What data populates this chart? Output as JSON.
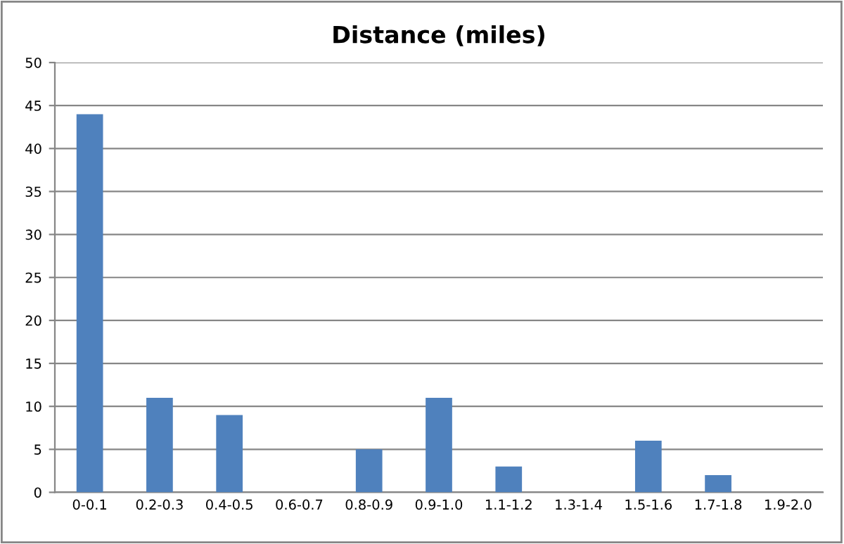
{
  "chart_data": {
    "type": "bar",
    "title": "Distance (miles)",
    "categories": [
      "0-0.1",
      "0.2-0.3",
      "0.4-0.5",
      "0.6-0.7",
      "0.8-0.9",
      "0.9-1.0",
      "1.1-1.2",
      "1.3-1.4",
      "1.5-1.6",
      "1.7-1.8",
      "1.9-2.0"
    ],
    "values": [
      44,
      11,
      9,
      0,
      5,
      11,
      3,
      0,
      6,
      2,
      0
    ],
    "color": "#4f81bd",
    "ylim": [
      0,
      50
    ],
    "yticks": [
      0,
      5,
      10,
      15,
      20,
      25,
      30,
      35,
      40,
      45,
      50
    ],
    "grid": "y",
    "legend": false
  }
}
